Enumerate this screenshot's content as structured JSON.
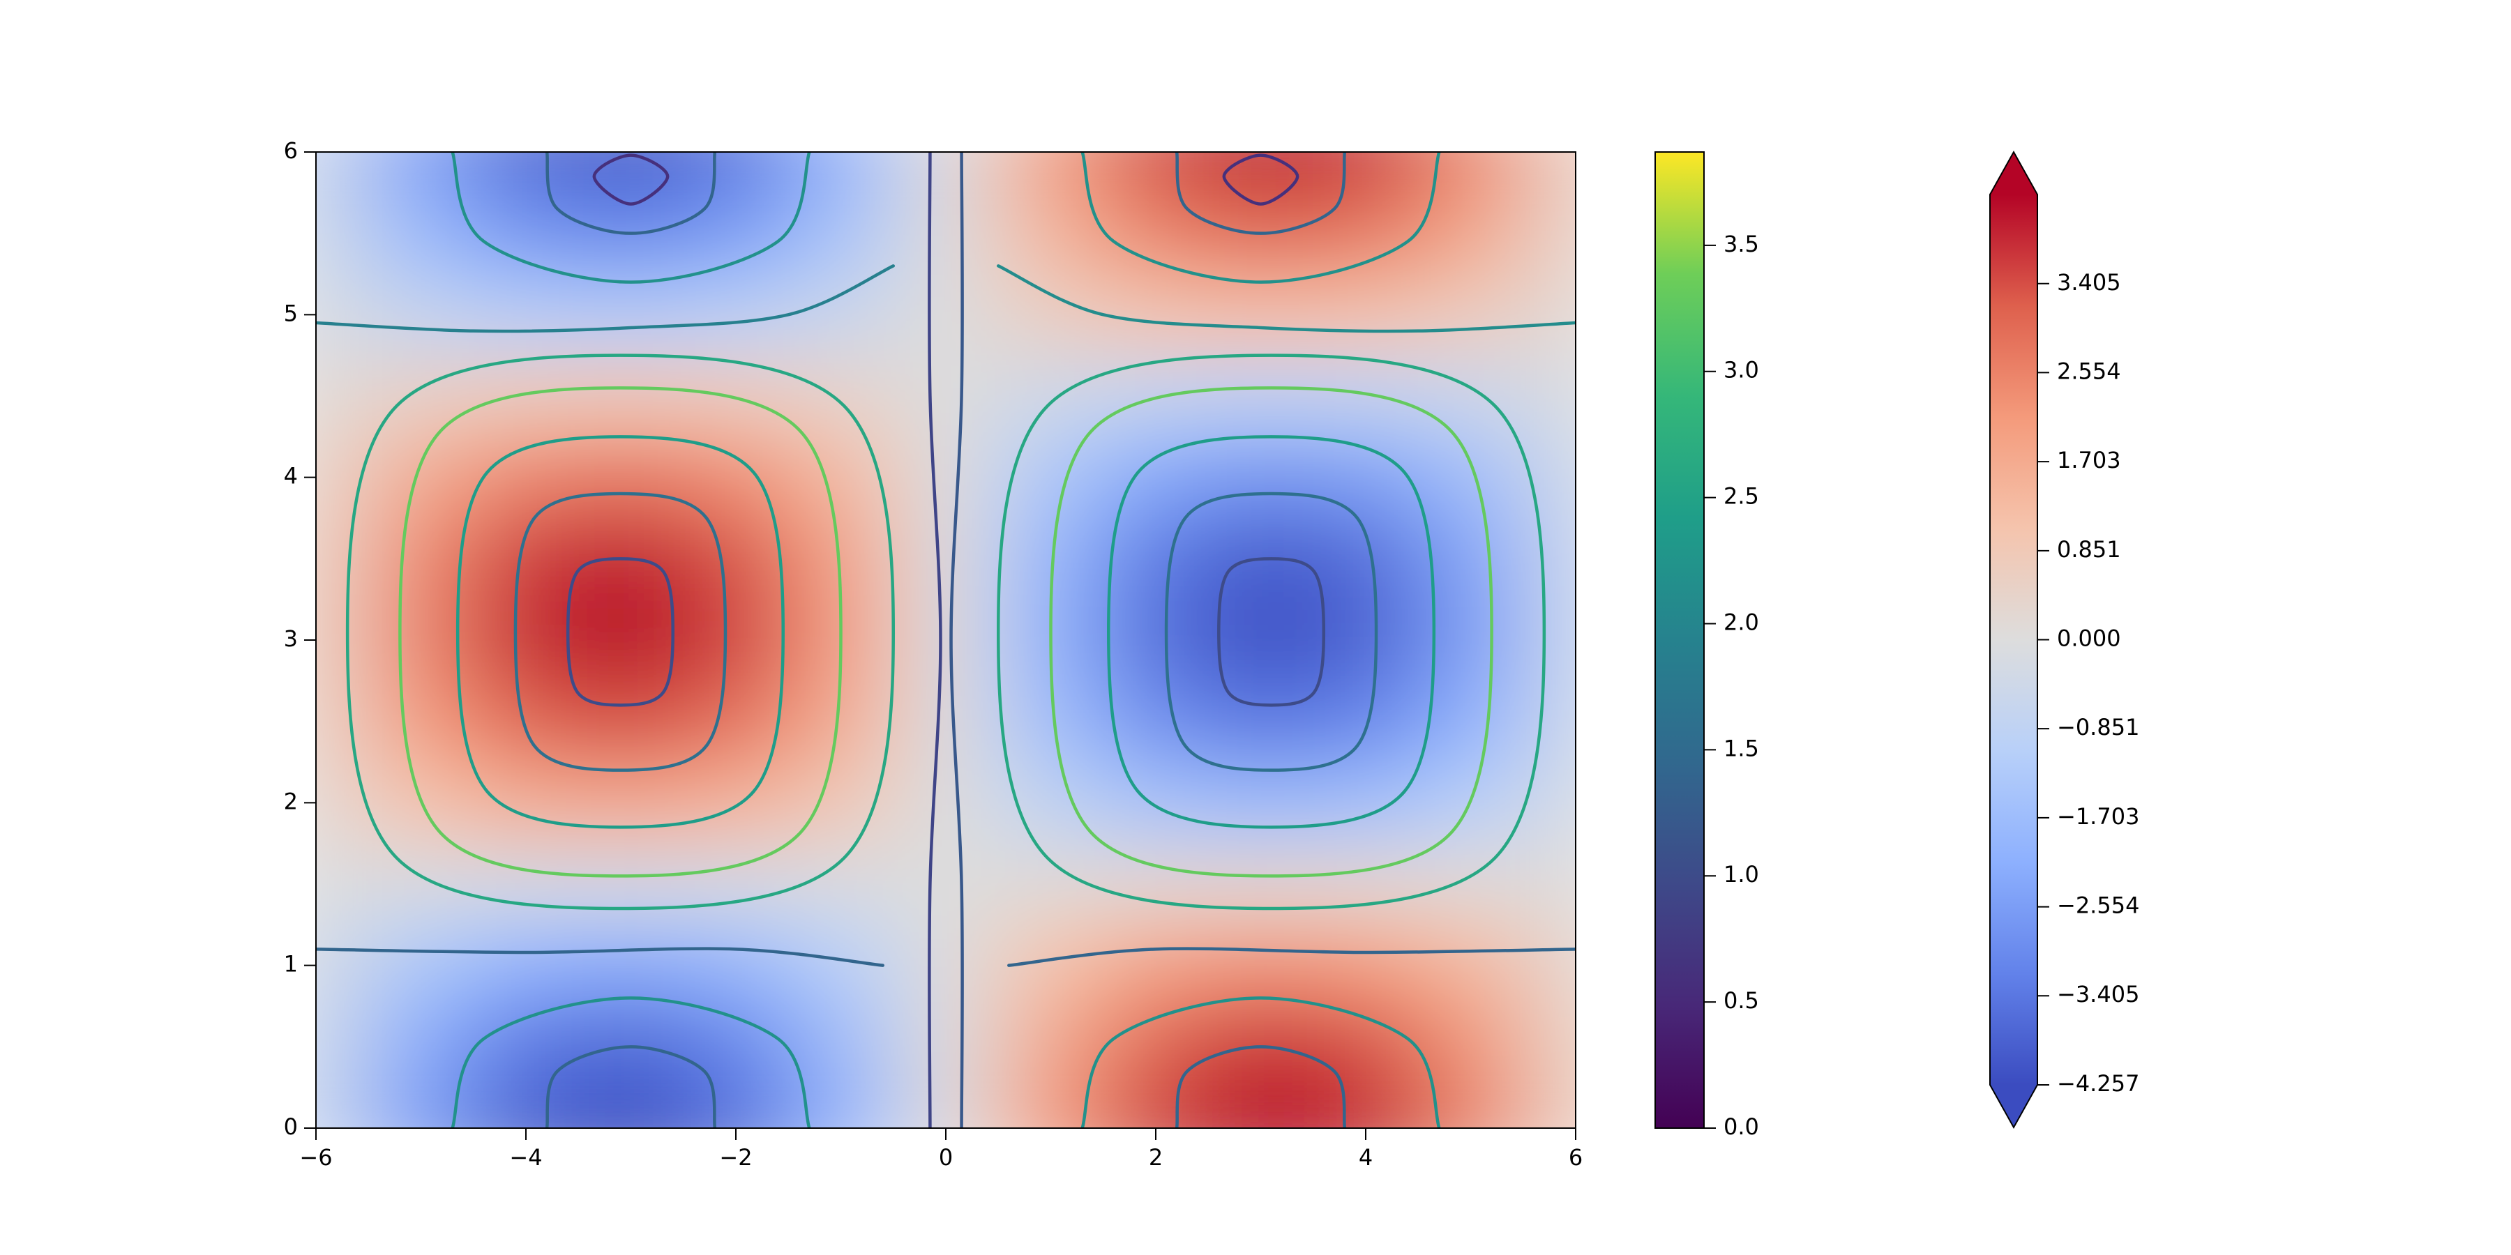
{
  "chart_data": {
    "type": "streamplot",
    "xlim": [
      -6,
      6
    ],
    "ylim": [
      0,
      6
    ],
    "xticks": [
      {
        "value": -6,
        "label": "−6"
      },
      {
        "value": -4,
        "label": "−4"
      },
      {
        "value": -2,
        "label": "−2"
      },
      0,
      2,
      4,
      6
    ],
    "yticks": [
      0,
      1,
      2,
      3,
      4,
      5,
      6
    ],
    "heatmap": {
      "cmap": "coolwarm",
      "clim": [
        -4.257,
        4.257
      ],
      "extend": "both",
      "colorbar_ticks": [
        {
          "value": -4.257,
          "label": "−4.257"
        },
        {
          "value": -3.405,
          "label": "−3.405"
        },
        {
          "value": -2.554,
          "label": "−2.554"
        },
        {
          "value": -1.703,
          "label": "−1.703"
        },
        {
          "value": -0.851,
          "label": "−0.851"
        },
        {
          "value": 0,
          "label": "0.000"
        },
        0.851,
        1.703,
        2.554,
        3.405
      ],
      "x": [
        -6,
        -5,
        -4,
        -3,
        -2,
        -1,
        0,
        1,
        2,
        3,
        4,
        5,
        6
      ],
      "y": [
        0,
        0.5,
        1,
        1.5,
        2,
        2.5,
        3,
        3.5,
        4,
        4.5,
        5,
        5.5,
        6
      ],
      "z": [
        [
          -0.6,
          -2.55,
          -3.87,
          -4.25,
          -3.58,
          -2.04,
          0,
          2.04,
          3.58,
          4.25,
          3.87,
          2.55,
          0.6
        ],
        [
          -0.53,
          -2.24,
          -3.4,
          -3.73,
          -3.14,
          -1.79,
          0,
          1.79,
          3.14,
          3.73,
          3.4,
          2.24,
          0.53
        ],
        [
          -0.32,
          -1.38,
          -2.09,
          -2.29,
          -1.94,
          -1.1,
          0,
          1.1,
          1.94,
          2.29,
          2.09,
          1.38,
          0.32
        ],
        [
          -0.04,
          -0.18,
          -0.27,
          -0.3,
          -0.25,
          -0.14,
          0,
          0.14,
          0.25,
          0.3,
          0.27,
          0.18,
          0.04
        ],
        [
          0.25,
          1.06,
          1.61,
          1.77,
          1.49,
          0.85,
          0,
          -0.85,
          -1.49,
          -1.77,
          -1.61,
          -1.06,
          -0.25
        ],
        [
          0.48,
          2.04,
          3.1,
          3.4,
          2.87,
          1.64,
          0,
          -1.64,
          -2.87,
          -3.4,
          -3.1,
          -2.04,
          -0.48
        ],
        [
          0.59,
          2.52,
          3.83,
          4.2,
          3.55,
          2.02,
          0,
          -2.02,
          -3.55,
          -4.2,
          -3.83,
          -2.52,
          -0.59
        ],
        [
          0.56,
          2.39,
          3.63,
          3.98,
          3.35,
          1.91,
          0,
          -1.91,
          -3.35,
          -3.98,
          -3.63,
          -2.39,
          -0.56
        ],
        [
          0.39,
          1.67,
          2.53,
          2.78,
          2.34,
          1.33,
          0,
          -1.33,
          -2.34,
          -2.78,
          -2.53,
          -1.67,
          -0.39
        ],
        [
          0.13,
          0.54,
          0.82,
          0.9,
          0.76,
          0.43,
          0,
          -0.43,
          -0.76,
          -0.9,
          -0.82,
          -0.54,
          -0.13
        ],
        [
          -0.17,
          -0.72,
          -1.1,
          -1.2,
          -1.02,
          -0.58,
          0,
          0.58,
          1.02,
          1.2,
          1.1,
          0.72,
          0.17
        ],
        [
          -0.43,
          -1.81,
          -2.74,
          -3.01,
          -2.54,
          -1.45,
          0,
          1.45,
          2.54,
          3.01,
          2.74,
          1.81,
          0.43
        ],
        [
          -0.58,
          -2.45,
          -3.72,
          -4.08,
          -3.44,
          -1.96,
          0,
          1.96,
          3.44,
          4.08,
          3.72,
          2.45,
          0.58
        ]
      ]
    },
    "streamlines": {
      "cmap": "viridis",
      "clim": [
        0,
        3.87
      ],
      "colorbar_ticks": [
        {
          "value": 0,
          "label": "0.0"
        },
        0.5,
        {
          "value": 1,
          "label": "1.0"
        },
        1.5,
        {
          "value": 2,
          "label": "2.0"
        },
        2.5,
        {
          "value": 3,
          "label": "3.0"
        },
        3.5
      ],
      "lines": [
        {
          "x": [
            -2.6,
            -2.69,
            -3.1,
            -3.51,
            -3.6,
            -3.51,
            -3.1,
            -2.69,
            -2.6
          ],
          "y": [
            3.05,
            3.42,
            3.5,
            3.42,
            3.05,
            2.68,
            2.6,
            2.68,
            3.05
          ],
          "speed": 1.0
        },
        {
          "x": [
            -2.1,
            -2.28,
            -3.1,
            -3.92,
            -4.1,
            -3.92,
            -3.1,
            -2.28,
            -2.1
          ],
          "y": [
            3.05,
            3.75,
            3.9,
            3.75,
            3.05,
            2.35,
            2.2,
            2.35,
            3.05
          ],
          "speed": 1.6
        },
        {
          "x": [
            -1.55,
            -1.83,
            -3.1,
            -4.37,
            -4.65,
            -4.37,
            -3.1,
            -1.83,
            -1.55
          ],
          "y": [
            3.05,
            4.03,
            4.25,
            4.03,
            3.05,
            2.07,
            1.85,
            2.07,
            3.05
          ],
          "speed": 2.4
        },
        {
          "x": [
            -1.0,
            -1.38,
            -3.1,
            -4.82,
            -5.2,
            -4.82,
            -3.1,
            -1.38,
            -1.0
          ],
          "y": [
            3.05,
            4.28,
            4.55,
            4.28,
            3.05,
            1.82,
            1.55,
            1.82,
            3.05
          ],
          "speed": 3.3
        },
        {
          "x": [
            -0.5,
            -0.97,
            -3.1,
            -5.23,
            -5.7,
            -5.23,
            -3.1,
            -0.97,
            -0.5
          ],
          "y": [
            3.05,
            4.44,
            4.75,
            4.44,
            3.05,
            1.66,
            1.35,
            1.66,
            3.05
          ],
          "speed": 2.6
        },
        {
          "x": [
            2.6,
            2.69,
            3.1,
            3.51,
            3.6,
            3.51,
            3.1,
            2.69,
            2.6
          ],
          "y": [
            3.05,
            3.42,
            3.5,
            3.42,
            3.05,
            2.68,
            2.6,
            2.68,
            3.05
          ],
          "speed": 1.0
        },
        {
          "x": [
            2.1,
            2.28,
            3.1,
            3.92,
            4.1,
            3.92,
            3.1,
            2.28,
            2.1
          ],
          "y": [
            3.05,
            3.75,
            3.9,
            3.75,
            3.05,
            2.35,
            2.2,
            2.35,
            3.05
          ],
          "speed": 1.6
        },
        {
          "x": [
            1.55,
            1.83,
            3.1,
            4.37,
            4.65,
            4.37,
            3.1,
            1.83,
            1.55
          ],
          "y": [
            3.05,
            4.03,
            4.25,
            4.03,
            3.05,
            2.07,
            1.85,
            2.07,
            3.05
          ],
          "speed": 2.4
        },
        {
          "x": [
            1.0,
            1.38,
            3.1,
            4.82,
            5.2,
            4.82,
            3.1,
            1.38,
            1.0
          ],
          "y": [
            3.05,
            4.28,
            4.55,
            4.28,
            3.05,
            1.82,
            1.55,
            1.82,
            3.05
          ],
          "speed": 3.3
        },
        {
          "x": [
            0.5,
            0.97,
            3.1,
            5.23,
            5.7,
            5.23,
            3.1,
            0.97,
            0.5
          ],
          "y": [
            3.05,
            4.44,
            4.75,
            4.44,
            3.05,
            1.66,
            1.35,
            1.66,
            3.05
          ],
          "speed": 2.6
        },
        {
          "x": [
            -1.3,
            -1.6,
            -3,
            -4.4,
            -4.7
          ],
          "y": [
            6,
            5.45,
            5.2,
            5.45,
            6
          ],
          "speed": 2.2
        },
        {
          "x": [
            -2.2,
            -2.3,
            -3,
            -3.7,
            -3.8
          ],
          "y": [
            6,
            5.65,
            5.5,
            5.65,
            6
          ],
          "speed": 1.4
        },
        {
          "x": [
            -2.65,
            -3,
            -3.35,
            -3,
            -2.65
          ],
          "y": [
            5.85,
            5.68,
            5.85,
            5.98,
            5.85
          ],
          "speed": 0.6
        },
        {
          "x": [
            1.3,
            1.6,
            3,
            4.4,
            4.7
          ],
          "y": [
            6,
            5.45,
            5.2,
            5.45,
            6
          ],
          "speed": 2.2
        },
        {
          "x": [
            2.2,
            2.3,
            3,
            3.7,
            3.8
          ],
          "y": [
            6,
            5.65,
            5.5,
            5.65,
            6
          ],
          "speed": 1.4
        },
        {
          "x": [
            2.65,
            3,
            3.35,
            3,
            2.65
          ],
          "y": [
            5.85,
            5.68,
            5.85,
            5.98,
            5.85
          ],
          "speed": 0.6
        },
        {
          "x": [
            -1.3,
            -1.6,
            -3,
            -4.4,
            -4.7
          ],
          "y": [
            0,
            0.55,
            0.8,
            0.55,
            0
          ],
          "speed": 2.2
        },
        {
          "x": [
            -2.2,
            -2.3,
            -3,
            -3.7,
            -3.8
          ],
          "y": [
            0,
            0.35,
            0.5,
            0.35,
            0
          ],
          "speed": 1.4
        },
        {
          "x": [
            1.3,
            1.6,
            3,
            4.4,
            4.7
          ],
          "y": [
            0,
            0.55,
            0.8,
            0.55,
            0
          ],
          "speed": 2.2
        },
        {
          "x": [
            2.2,
            2.3,
            3,
            3.7,
            3.8
          ],
          "y": [
            0,
            0.35,
            0.5,
            0.35,
            0
          ],
          "speed": 1.4
        },
        {
          "x": [
            -6,
            -4.5,
            -3,
            -1.5,
            -0.5
          ],
          "y": [
            4.95,
            4.9,
            4.92,
            5.0,
            5.3
          ],
          "speed": 1.9
        },
        {
          "x": [
            0.5,
            1.5,
            3,
            4.5,
            6
          ],
          "y": [
            5.3,
            5.0,
            4.92,
            4.9,
            4.95
          ],
          "speed": 2.1
        },
        {
          "x": [
            -6,
            -4,
            -2,
            -0.6
          ],
          "y": [
            1.1,
            1.08,
            1.1,
            1.0
          ],
          "speed": 1.4
        },
        {
          "x": [
            0.6,
            2,
            4,
            6
          ],
          "y": [
            1.0,
            1.1,
            1.08,
            1.1
          ],
          "speed": 1.4
        },
        {
          "x": [
            -0.15,
            -0.15,
            -0.05,
            -0.15,
            -0.15
          ],
          "y": [
            6,
            4.5,
            3,
            1.5,
            0
          ],
          "speed": 0.9
        },
        {
          "x": [
            0.15,
            0.15,
            0.05,
            0.15,
            0.15
          ],
          "y": [
            6,
            4.5,
            3,
            1.5,
            0
          ],
          "speed": 1.2
        }
      ]
    }
  }
}
